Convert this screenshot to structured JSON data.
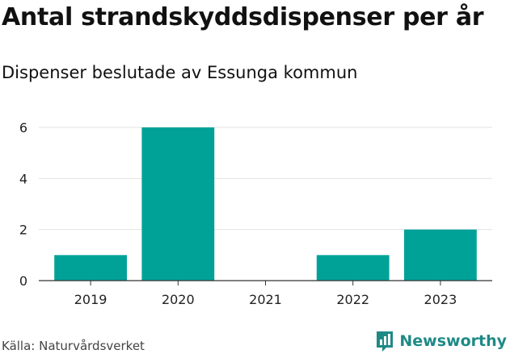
{
  "header": {
    "title": "Antal strandskyddsdispenser per år",
    "subtitle": "Dispenser beslutade av Essunga kommun"
  },
  "footer": {
    "source": "Källa: Naturvårdsverket",
    "brand": "Newsworthy",
    "brand_icon": "newsworthy-logo-icon",
    "brand_color": "#1e8a86"
  },
  "chart_data": {
    "type": "bar",
    "title": "Antal strandskyddsdispenser per år",
    "subtitle": "Dispenser beslutade av Essunga kommun",
    "categories": [
      "2019",
      "2020",
      "2021",
      "2022",
      "2023"
    ],
    "values": [
      1,
      6,
      0,
      1,
      2
    ],
    "ylim": [
      0,
      6
    ],
    "yticks": [
      0,
      2,
      4,
      6
    ],
    "grid": true,
    "bar_color": "#00a298"
  }
}
